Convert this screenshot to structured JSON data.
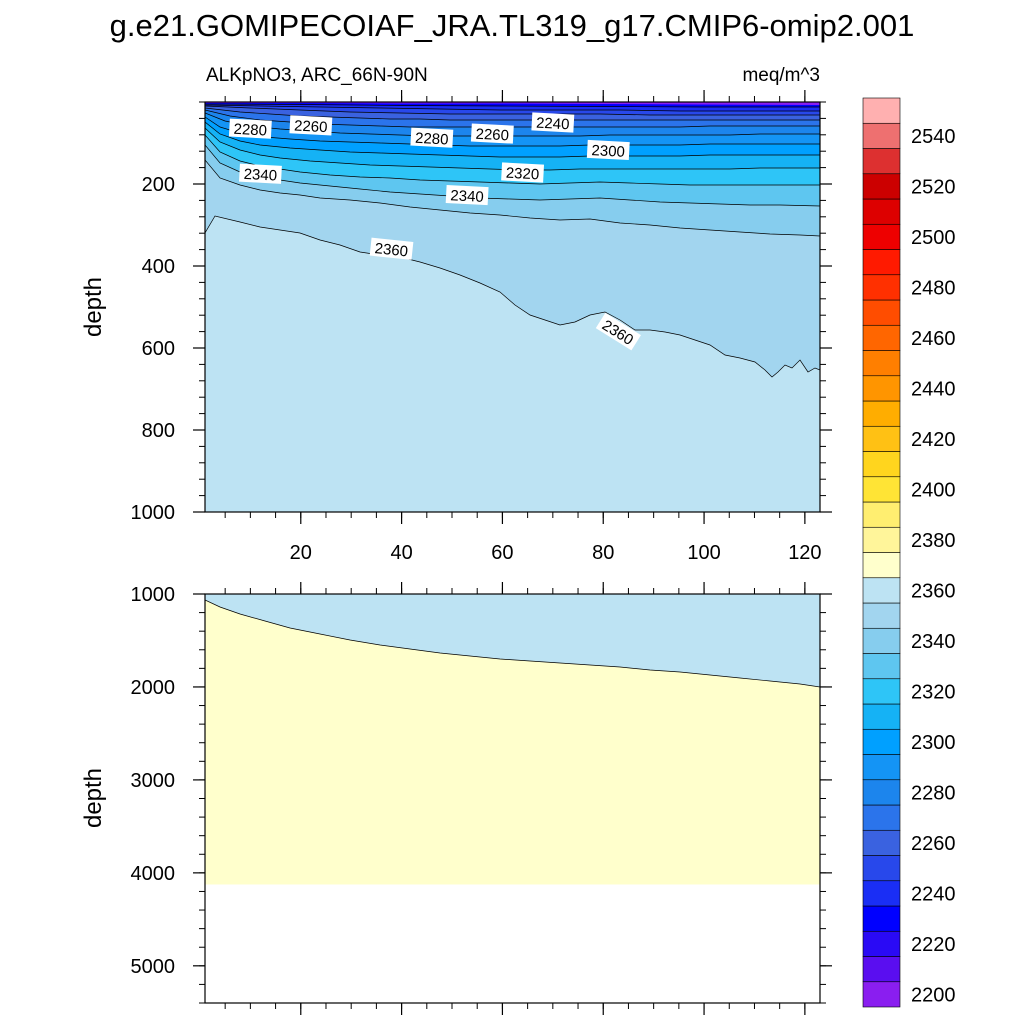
{
  "title": "g.e21.GOMIPECOIAF_JRA.TL319_g17.CMIP6-omip2.001",
  "chart_data": {
    "type": "contour",
    "subtitle_left": "ALKpNO3, ARC_66N-90N",
    "subtitle_right": "meq/m^3",
    "ylabel": "depth",
    "x_range": [
      1,
      123
    ],
    "x_ticks": [
      {
        "value": 20,
        "label": "20"
      },
      {
        "value": 40,
        "label": "40"
      },
      {
        "value": 60,
        "label": "60"
      },
      {
        "value": 80,
        "label": "80"
      },
      {
        "value": 100,
        "label": "100"
      },
      {
        "value": 120,
        "label": "120"
      }
    ],
    "top_panel": {
      "ylim": [
        0,
        1000
      ],
      "y_ticks": [
        {
          "value": 200,
          "label": "200"
        },
        {
          "value": 400,
          "label": "400"
        },
        {
          "value": 600,
          "label": "600"
        },
        {
          "value": 800,
          "label": "800"
        },
        {
          "value": 1000,
          "label": "1000"
        }
      ],
      "contour_labels": [
        {
          "text": "2280",
          "x": 10,
          "y": 65
        },
        {
          "text": "2260",
          "x": 22,
          "y": 57
        },
        {
          "text": "2280",
          "x": 46,
          "y": 87
        },
        {
          "text": "2260",
          "x": 58,
          "y": 77
        },
        {
          "text": "2240",
          "x": 70,
          "y": 50
        },
        {
          "text": "2300",
          "x": 81,
          "y": 117
        },
        {
          "text": "2320",
          "x": 64,
          "y": 172
        },
        {
          "text": "2340",
          "x": 12,
          "y": 175
        },
        {
          "text": "2340",
          "x": 53,
          "y": 227
        },
        {
          "text": "2360",
          "x": 38,
          "y": 358
        },
        {
          "text": "2360",
          "x": 83,
          "y": 560
        }
      ]
    },
    "bottom_panel": {
      "ylim": [
        1000,
        5400
      ],
      "y_ticks": [
        {
          "value": 1000,
          "label": "1000"
        },
        {
          "value": 2000,
          "label": "2000"
        },
        {
          "value": 3000,
          "label": "3000"
        },
        {
          "value": 4000,
          "label": "4000"
        },
        {
          "value": 5000,
          "label": "5000"
        }
      ],
      "bottom_depth": 4125
    },
    "colorbar": {
      "levels": [
        2200,
        2210,
        2220,
        2230,
        2240,
        2250,
        2260,
        2270,
        2280,
        2290,
        2300,
        2310,
        2320,
        2330,
        2340,
        2350,
        2360,
        2370,
        2380,
        2390,
        2400,
        2410,
        2420,
        2430,
        2440,
        2450,
        2460,
        2470,
        2480,
        2490,
        2500,
        2510,
        2520,
        2530,
        2540,
        2550
      ],
      "colors": [
        "#8a1ef0",
        "#5a0ef0",
        "#2a0af5",
        "#0000ff",
        "#1a2ef5",
        "#2848eb",
        "#3a62e0",
        "#2b74eb",
        "#1c85ed",
        "#1494f5",
        "#00a0ff",
        "#15b2f5",
        "#2ec5f7",
        "#5ec6f0",
        "#86cdee",
        "#a2d5ef",
        "#bde3f3",
        "#ffffcc",
        "#fff59a",
        "#ffee70",
        "#ffe435",
        "#ffd51e",
        "#ffc114",
        "#ffad00",
        "#ff9500",
        "#ff7f00",
        "#ff6600",
        "#ff4d00",
        "#ff3000",
        "#ff1a00",
        "#ee0000",
        "#dd0000",
        "#cc0000",
        "#dd3030",
        "#ee7070",
        "#ffb0b0"
      ],
      "labels": [
        "2200",
        "2220",
        "2240",
        "2260",
        "2280",
        "2300",
        "2320",
        "2340",
        "2360",
        "2380",
        "2400",
        "2420",
        "2440",
        "2460",
        "2480",
        "2500",
        "2520",
        "2540"
      ]
    }
  }
}
